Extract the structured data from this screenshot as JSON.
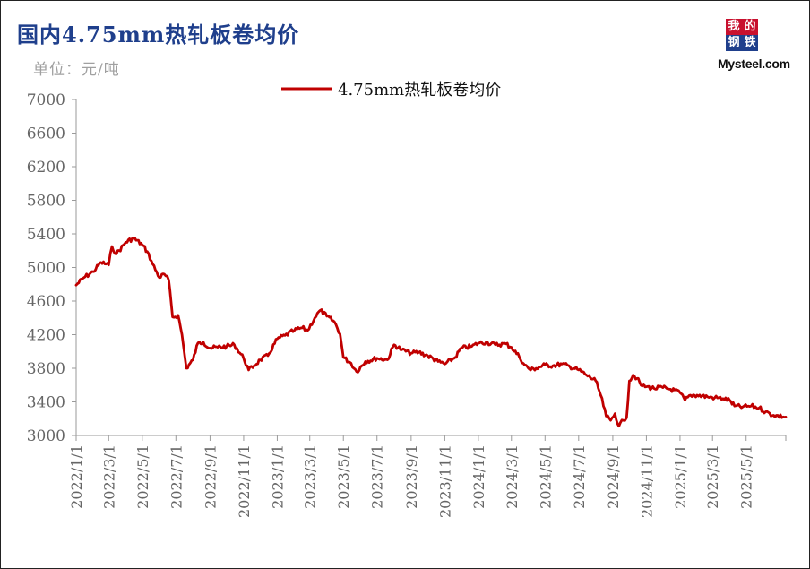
{
  "header": {
    "title": "国内4.75mm热轧板卷均价",
    "unit": "单位：元/吨"
  },
  "logo": {
    "chars": [
      "我",
      "的",
      "钢",
      "铁"
    ],
    "text": "Mysteel.com",
    "colors": [
      "#c8102e",
      "#c8102e",
      "#1f3f8c",
      "#1f3f8c"
    ]
  },
  "chart_data": {
    "type": "line",
    "title": "国内4.75mm热轧板卷均价",
    "ylabel": "单位：元/吨",
    "ylim": [
      3000,
      7000
    ],
    "yticks": [
      3000,
      3400,
      3800,
      4200,
      4600,
      5000,
      5400,
      5800,
      6200,
      6600,
      7000
    ],
    "xlim": [
      "2022-01-01",
      "2025-07-12"
    ],
    "xtick_labels": [
      "2022/1/1",
      "2022/3/1",
      "2022/5/1",
      "2022/7/1",
      "2022/9/1",
      "2022/11/1",
      "2023/1/1",
      "2023/3/1",
      "2023/5/1",
      "2023/7/1",
      "2023/9/1",
      "2023/11/1",
      "2024/1/1",
      "2024/3/1",
      "2024/5/1",
      "2024/7/1",
      "2024/9/1",
      "2024/11/1",
      "2025/1/1",
      "2025/3/1",
      "2025/5/1"
    ],
    "legend_position": "top-center",
    "grid": false,
    "series": [
      {
        "name": "4.75mm热轧板卷均价",
        "color": "#c00000",
        "points": [
          [
            "2022-01-01",
            4790
          ],
          [
            "2022-01-15",
            4880
          ],
          [
            "2022-02-01",
            4950
          ],
          [
            "2022-02-15",
            5060
          ],
          [
            "2022-03-01",
            5030
          ],
          [
            "2022-03-07",
            5250
          ],
          [
            "2022-03-15",
            5160
          ],
          [
            "2022-04-01",
            5300
          ],
          [
            "2022-04-15",
            5350
          ],
          [
            "2022-05-01",
            5270
          ],
          [
            "2022-05-10",
            5190
          ],
          [
            "2022-05-20",
            5040
          ],
          [
            "2022-06-01",
            4880
          ],
          [
            "2022-06-10",
            4920
          ],
          [
            "2022-06-18",
            4850
          ],
          [
            "2022-06-25",
            4410
          ],
          [
            "2022-07-05",
            4430
          ],
          [
            "2022-07-12",
            4200
          ],
          [
            "2022-07-20",
            3800
          ],
          [
            "2022-08-01",
            3900
          ],
          [
            "2022-08-10",
            4100
          ],
          [
            "2022-08-20",
            4110
          ],
          [
            "2022-09-01",
            4040
          ],
          [
            "2022-09-15",
            4050
          ],
          [
            "2022-10-01",
            4060
          ],
          [
            "2022-10-15",
            4080
          ],
          [
            "2022-11-01",
            3920
          ],
          [
            "2022-11-10",
            3780
          ],
          [
            "2022-11-20",
            3830
          ],
          [
            "2022-12-01",
            3900
          ],
          [
            "2022-12-15",
            3950
          ],
          [
            "2023-01-01",
            4150
          ],
          [
            "2023-01-15",
            4190
          ],
          [
            "2023-02-01",
            4250
          ],
          [
            "2023-02-15",
            4280
          ],
          [
            "2023-02-25",
            4250
          ],
          [
            "2023-03-10",
            4400
          ],
          [
            "2023-03-20",
            4490
          ],
          [
            "2023-04-01",
            4420
          ],
          [
            "2023-04-15",
            4350
          ],
          [
            "2023-04-25",
            4210
          ],
          [
            "2023-05-01",
            3930
          ],
          [
            "2023-05-15",
            3860
          ],
          [
            "2023-05-25",
            3760
          ],
          [
            "2023-06-10",
            3880
          ],
          [
            "2023-07-01",
            3920
          ],
          [
            "2023-07-20",
            3900
          ],
          [
            "2023-08-01",
            4080
          ],
          [
            "2023-08-15",
            4020
          ],
          [
            "2023-09-01",
            3980
          ],
          [
            "2023-09-15",
            3990
          ],
          [
            "2023-10-01",
            3950
          ],
          [
            "2023-10-20",
            3880
          ],
          [
            "2023-11-01",
            3850
          ],
          [
            "2023-11-20",
            3930
          ],
          [
            "2023-12-01",
            4040
          ],
          [
            "2023-12-20",
            4060
          ],
          [
            "2024-01-01",
            4100
          ],
          [
            "2024-01-15",
            4110
          ],
          [
            "2024-02-01",
            4080
          ],
          [
            "2024-02-20",
            4090
          ],
          [
            "2024-03-01",
            4050
          ],
          [
            "2024-03-15",
            3940
          ],
          [
            "2024-03-25",
            3840
          ],
          [
            "2024-04-05",
            3780
          ],
          [
            "2024-04-15",
            3800
          ],
          [
            "2024-05-01",
            3840
          ],
          [
            "2024-05-15",
            3830
          ],
          [
            "2024-06-01",
            3850
          ],
          [
            "2024-06-15",
            3820
          ],
          [
            "2024-07-01",
            3780
          ],
          [
            "2024-07-15",
            3720
          ],
          [
            "2024-08-01",
            3650
          ],
          [
            "2024-08-10",
            3480
          ],
          [
            "2024-08-20",
            3230
          ],
          [
            "2024-08-28",
            3180
          ],
          [
            "2024-09-05",
            3260
          ],
          [
            "2024-09-12",
            3110
          ],
          [
            "2024-09-20",
            3180
          ],
          [
            "2024-09-26",
            3210
          ],
          [
            "2024-10-01",
            3650
          ],
          [
            "2024-10-08",
            3720
          ],
          [
            "2024-10-15",
            3680
          ],
          [
            "2024-10-22",
            3600
          ],
          [
            "2024-11-01",
            3580
          ],
          [
            "2024-11-15",
            3560
          ],
          [
            "2024-12-01",
            3570
          ],
          [
            "2024-12-15",
            3550
          ],
          [
            "2025-01-01",
            3510
          ],
          [
            "2025-01-10",
            3420
          ],
          [
            "2025-01-20",
            3480
          ],
          [
            "2025-02-01",
            3480
          ],
          [
            "2025-02-20",
            3460
          ],
          [
            "2025-03-05",
            3450
          ],
          [
            "2025-03-20",
            3440
          ],
          [
            "2025-04-01",
            3420
          ],
          [
            "2025-04-10",
            3350
          ],
          [
            "2025-04-25",
            3340
          ],
          [
            "2025-05-10",
            3350
          ],
          [
            "2025-05-25",
            3330
          ],
          [
            "2025-06-05",
            3280
          ],
          [
            "2025-06-20",
            3240
          ],
          [
            "2025-07-12",
            3220
          ]
        ]
      }
    ]
  }
}
